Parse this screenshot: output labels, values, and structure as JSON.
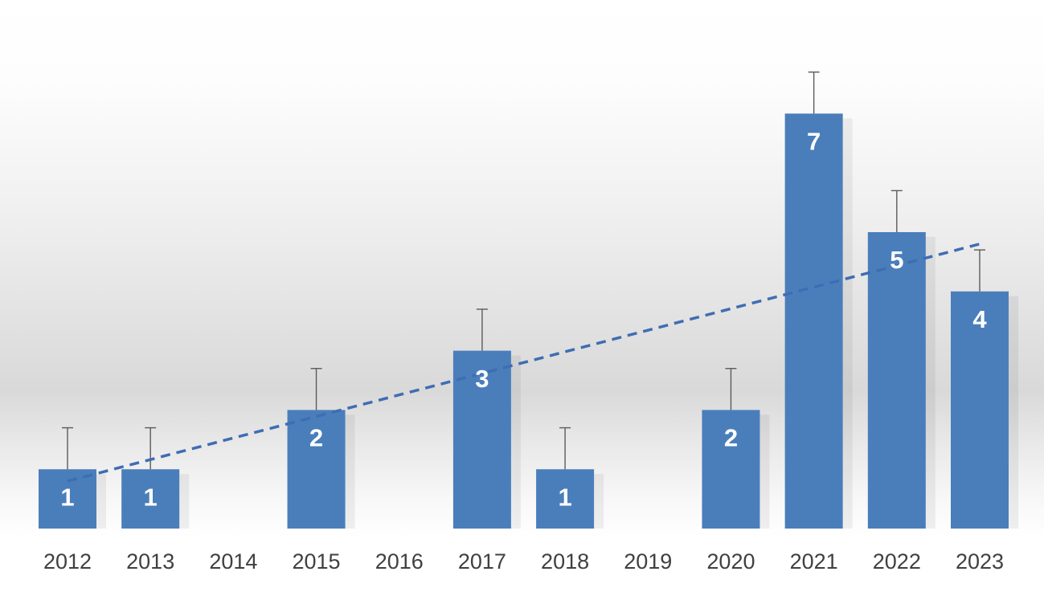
{
  "chart_data": {
    "type": "bar",
    "categories": [
      "2012",
      "2013",
      "2014",
      "2015",
      "2016",
      "2017",
      "2018",
      "2019",
      "2020",
      "2021",
      "2022",
      "2023"
    ],
    "values": [
      1,
      1,
      0,
      2,
      0,
      3,
      1,
      0,
      2,
      7,
      5,
      4
    ],
    "data_labels": [
      "1",
      "1",
      "",
      "2",
      "",
      "3",
      "1",
      "",
      "2",
      "7",
      "5",
      "4"
    ],
    "error_bar_upper": [
      1.7,
      1.7,
      0,
      2.7,
      0,
      3.7,
      1.7,
      0,
      2.7,
      7.7,
      5.7,
      4.7
    ],
    "trendline": {
      "type": "linear",
      "style": "dashed",
      "start": {
        "x": "2012",
        "y": 0.8
      },
      "end": {
        "x": "2023",
        "y": 4.8
      }
    },
    "ylim": [
      0,
      8
    ],
    "grid": false,
    "legend": "none",
    "title": "",
    "xlabel": "",
    "ylabel": "",
    "colors": {
      "bar": "#4a7ebb",
      "trendline": "#3f6db3",
      "error_bar": "#5b5b5b",
      "label": "#ffffff",
      "tick_label": "#404040"
    }
  }
}
